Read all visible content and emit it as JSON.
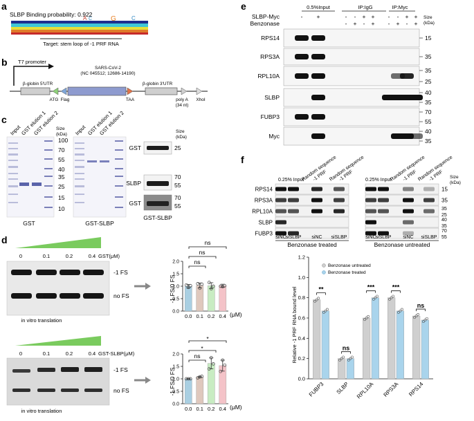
{
  "panels": {
    "a": {
      "label": "a",
      "title": "SLBP Binding probability: 0.922",
      "caption": "Target: stem loop of -1 PRF RNA"
    },
    "b": {
      "label": "b",
      "promoter": "T7 promoter",
      "utr5": "β-globin 5'UTR",
      "insert_line1": "SARS-CoV-2",
      "insert_line2": "(NC 045512; 12686-14190)",
      "utr3": "β-globin 3'UTR",
      "atg": "ATG",
      "flag": "Flag",
      "taa": "TAA",
      "polya_line1": "poly A",
      "polya_line2": "(34 nt)",
      "xhoi": "XhoI"
    },
    "c": {
      "label": "c",
      "gel1_lanes": [
        "Input",
        "GST elution 1",
        "GST elution 2"
      ],
      "gel2_lanes": [
        "Input",
        "GST elution 1",
        "GST elution 2"
      ],
      "size_header": "Size",
      "size_unit": "(kDa)",
      "ladder": [
        "100",
        "70",
        "55",
        "40",
        "35",
        "25",
        "15",
        "10"
      ],
      "gel1_caption": "GST",
      "gel2_caption": "GST-SLBP",
      "wb": [
        {
          "name": "GST",
          "sizes": [
            "25"
          ]
        },
        {
          "name": "SLBP",
          "sizes": [
            "70",
            "55"
          ]
        },
        {
          "name": "GST",
          "sizes": [
            "70",
            "55"
          ]
        }
      ],
      "wb_caption": "GST-SLBP"
    },
    "d": {
      "label": "d",
      "top": {
        "concs": [
          "0",
          "0.1",
          "0.2",
          "0.4"
        ],
        "unit_label": "GST(μM)",
        "band_top": "-1 FS",
        "band_bottom": "no FS",
        "caption": "in vitro translation",
        "ylabel": "-1 FS/0 FS",
        "xunit": "(μM)",
        "sig_outer": "ns",
        "sig_mid": "ns",
        "sig_inner": "ns"
      },
      "bottom": {
        "concs": [
          "0",
          "0.1",
          "0.2",
          "0.4"
        ],
        "unit_label": "GST-SLBP(μM)",
        "band_top": "-1 FS",
        "band_bottom": "no FS",
        "caption": "in vitro translation",
        "ylabel": "-1 FS/0 FS",
        "xunit": "(μM)",
        "sig_outer": "*",
        "sig_mid": "*",
        "sig_inner": "ns"
      }
    },
    "e": {
      "label": "e",
      "groups": [
        "0.5%Input",
        "IP:IgG",
        "IP:Myc"
      ],
      "row1_label": "SLBP-Myc",
      "row2_label": "Benzonase",
      "row1_signs": [
        "-",
        "+",
        "-",
        "-",
        "+",
        "+",
        "-",
        "-",
        "+",
        "+"
      ],
      "row2_signs": [
        "",
        "",
        "-",
        "+",
        "-",
        "+",
        "-",
        "+",
        "-",
        "+"
      ],
      "size_header": "Size",
      "size_unit": "(kDa)",
      "blots": [
        {
          "name": "RPS14",
          "sizes": [
            "15"
          ]
        },
        {
          "name": "RPS3A",
          "sizes": [
            "35"
          ]
        },
        {
          "name": "RPL10A",
          "sizes": [
            "35",
            "25"
          ]
        },
        {
          "name": "SLBP",
          "sizes": [
            "40",
            "35"
          ]
        },
        {
          "name": "FUBP3",
          "sizes": [
            "70",
            "55"
          ]
        },
        {
          "name": "Myc",
          "sizes": [
            "40",
            "35"
          ]
        }
      ]
    },
    "f": {
      "label": "f",
      "left_headers": [
        "0.25% Input",
        "Random sequence",
        "-1 PRF",
        "Random sequence",
        "-1 PRF"
      ],
      "right_headers": [
        "0.25% Input",
        "Random sequence",
        "-1 PRF",
        "Random sequence",
        "-1 PRF"
      ],
      "size_header": "Size",
      "size_unit": "(kDa)",
      "blots": [
        {
          "name": "RPS14",
          "sizes": [
            "15"
          ]
        },
        {
          "name": "RPS3A",
          "sizes": [
            "35"
          ]
        },
        {
          "name": "RPL10A",
          "sizes": [
            "35",
            "25"
          ]
        },
        {
          "name": "SLBP",
          "sizes": [
            "40",
            "35"
          ]
        },
        {
          "name": "FUBP3",
          "sizes": [
            "70",
            "55"
          ]
        }
      ],
      "left_bottom": [
        "siNC",
        "siSLBP",
        "siNC",
        "siSLBP"
      ],
      "right_bottom": [
        "siNC",
        "siSLBP",
        "siNC",
        "siSLBP"
      ],
      "left_caption": "Benzonase treated",
      "right_caption": "Benzonase untreated",
      "legend": [
        "Benzonase untreated",
        "Benzonase treated"
      ],
      "ylabel": "Relative -1 PRF RNA bound level",
      "sigs": [
        "**",
        "ns",
        "***",
        "***",
        "ns"
      ]
    }
  },
  "chart_data": [
    {
      "type": "bar",
      "panel": "d-top",
      "categories": [
        "0.0",
        "0.1",
        "0.2",
        "0.4"
      ],
      "values": [
        1.0,
        1.03,
        1.02,
        1.02
      ],
      "points": [
        [
          1.05,
          0.95,
          1.02
        ],
        [
          1.1,
          0.92,
          1.08
        ],
        [
          1.15,
          0.9,
          1.0
        ],
        [
          1.0,
          0.98,
          1.02
        ]
      ],
      "errors": [
        0.07,
        0.1,
        0.12,
        0.06
      ],
      "ylim": [
        0,
        2.0
      ],
      "yticks": [
        "0.0",
        "0.5",
        "1.0",
        "1.5",
        "2.0"
      ],
      "colors": [
        "#a9cfe2",
        "#dfc8bd",
        "#c8ecc2",
        "#f4c3c8"
      ]
    },
    {
      "type": "bar",
      "panel": "d-bottom",
      "categories": [
        "0.0",
        "0.1",
        "0.2",
        "0.4"
      ],
      "values": [
        1.0,
        1.07,
        1.62,
        1.53
      ],
      "points": [
        [
          1.0,
          1.0,
          1.0
        ],
        [
          1.04,
          1.08,
          1.1
        ],
        [
          1.4,
          1.85,
          1.6
        ],
        [
          1.3,
          1.75,
          1.55
        ]
      ],
      "errors": [
        0.01,
        0.03,
        0.22,
        0.22
      ],
      "ylim": [
        0,
        2.0
      ],
      "yticks": [
        "0.0",
        "0.5",
        "1.0",
        "1.5",
        "2.0"
      ],
      "colors": [
        "#a9cfe2",
        "#dfc8bd",
        "#c8ecc2",
        "#f4c3c8"
      ]
    },
    {
      "type": "bar",
      "panel": "f-bottom",
      "categories": [
        "FUBP3",
        "SLBP",
        "RPL10A",
        "RPS3A",
        "RPS14"
      ],
      "series": [
        {
          "name": "Benzonase untreated",
          "values": [
            0.78,
            0.2,
            0.6,
            0.8,
            0.62
          ],
          "color": "#cfcfcf"
        },
        {
          "name": "Benzonase treated",
          "values": [
            0.67,
            0.2,
            0.8,
            0.67,
            0.58
          ],
          "color": "#a9d4ec"
        }
      ],
      "ylim": [
        0,
        1.2
      ],
      "yticks": [
        "0.0",
        "0.2",
        "0.4",
        "0.6",
        "0.8",
        "1.0",
        "1.2"
      ]
    }
  ]
}
